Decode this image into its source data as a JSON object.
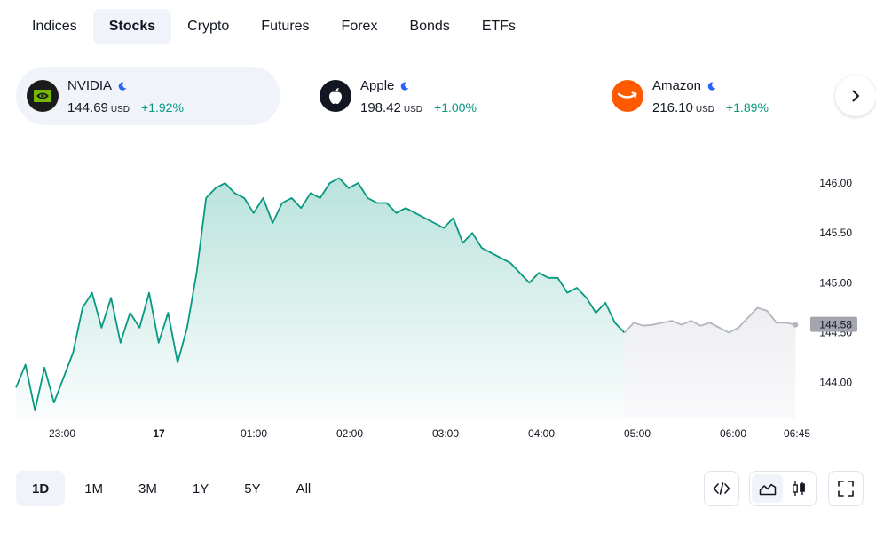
{
  "categories": [
    {
      "label": "Indices",
      "active": false
    },
    {
      "label": "Stocks",
      "active": true
    },
    {
      "label": "Crypto",
      "active": false
    },
    {
      "label": "Futures",
      "active": false
    },
    {
      "label": "Forex",
      "active": false
    },
    {
      "label": "Bonds",
      "active": false
    },
    {
      "label": "ETFs",
      "active": false
    }
  ],
  "tickers": [
    {
      "name": "NVIDIA",
      "price": "144.69",
      "currency": "USD",
      "change": "+1.92%",
      "logo": "nvidia-logo-icon",
      "logo_bg": "#1b1b1b",
      "active": true
    },
    {
      "name": "Apple",
      "price": "198.42",
      "currency": "USD",
      "change": "+1.00%",
      "logo": "apple-logo-icon",
      "logo_bg": "#131722",
      "active": false
    },
    {
      "name": "Amazon",
      "price": "216.10",
      "currency": "USD",
      "change": "+1.89%",
      "logo": "amazon-logo-icon",
      "logo_bg": "#ff5a00",
      "active": false
    }
  ],
  "colors": {
    "up": "#089981",
    "moon": "#2962ff",
    "extended": "#b2b5be"
  },
  "chart_data": {
    "type": "area",
    "y_ticks": [
      "146.00",
      "145.50",
      "145.00",
      "144.50",
      "144.00"
    ],
    "ylim": [
      143.65,
      146.25
    ],
    "x_ticks": [
      "23:00",
      "17",
      "01:00",
      "02:00",
      "03:00",
      "04:00",
      "05:00",
      "06:00",
      "06:45"
    ],
    "last_price_label": "144.58",
    "series": [
      {
        "session": "regular",
        "values": [
          143.95,
          144.18,
          143.72,
          144.15,
          143.8,
          144.05,
          144.3,
          144.75,
          144.9,
          144.55,
          144.85,
          144.4,
          144.7,
          144.55,
          144.9,
          144.4,
          144.7,
          144.2,
          144.55,
          145.1,
          145.85,
          145.95,
          146.0,
          145.9,
          145.85,
          145.7,
          145.85,
          145.6,
          145.8,
          145.85,
          145.75,
          145.9,
          145.85,
          146.0,
          146.05,
          145.95,
          146.0,
          145.85,
          145.8,
          145.8,
          145.7,
          145.75,
          145.7,
          145.65,
          145.6,
          145.55,
          145.65,
          145.4,
          145.5,
          145.35,
          145.3,
          145.25,
          145.2,
          145.1,
          145.0,
          145.1,
          145.05,
          145.05,
          144.9,
          144.95,
          144.85,
          144.7,
          144.8,
          144.6,
          144.5
        ]
      },
      {
        "session": "extended",
        "values": [
          144.5,
          144.6,
          144.57,
          144.58,
          144.6,
          144.62,
          144.58,
          144.62,
          144.57,
          144.6,
          144.55,
          144.5,
          144.55,
          144.65,
          144.75,
          144.72,
          144.6,
          144.6,
          144.58
        ]
      }
    ]
  },
  "ranges": [
    {
      "label": "1D",
      "active": true
    },
    {
      "label": "1M",
      "active": false
    },
    {
      "label": "3M",
      "active": false
    },
    {
      "label": "1Y",
      "active": false
    },
    {
      "label": "5Y",
      "active": false
    },
    {
      "label": "All",
      "active": false
    }
  ],
  "tools": {
    "embed": "code-icon",
    "area": "area-chart-icon",
    "candles": "candlestick-icon",
    "fullscreen": "fullscreen-icon"
  }
}
